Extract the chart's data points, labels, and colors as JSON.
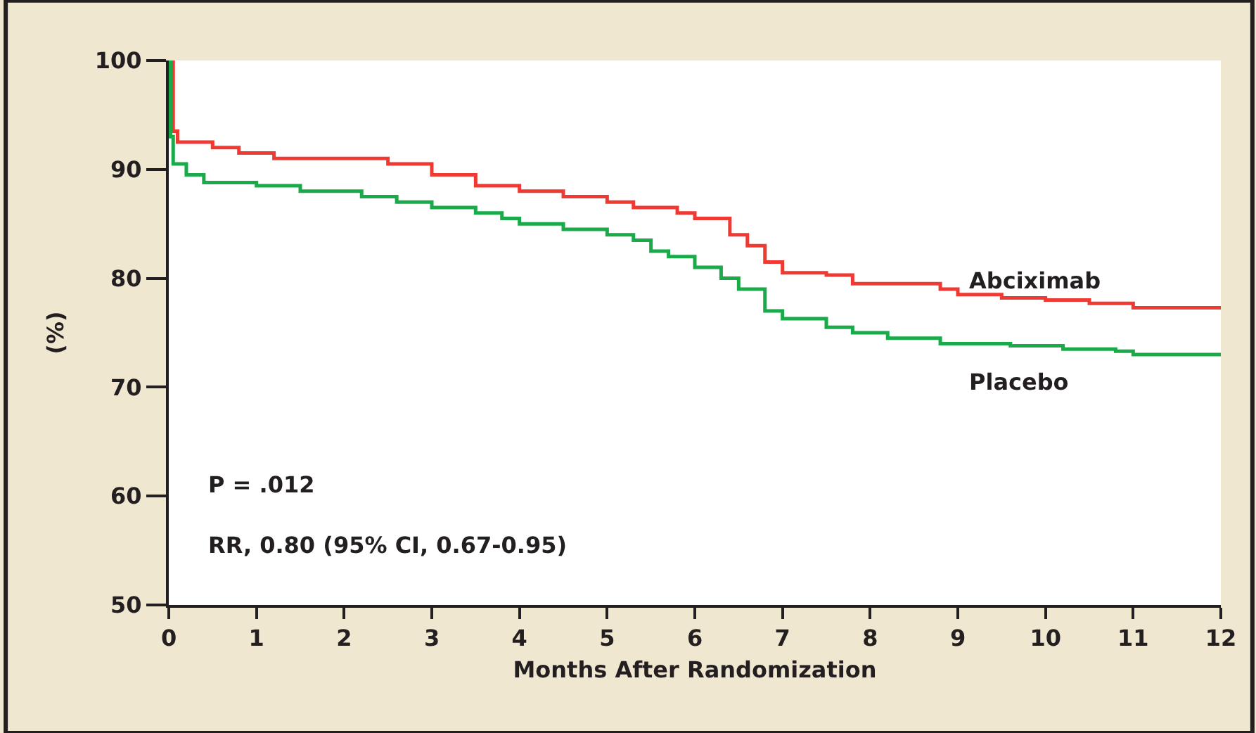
{
  "chart_data": {
    "type": "step",
    "xlabel": "Months After Randomization",
    "ylabel": "(%)",
    "xlim": [
      0,
      12
    ],
    "xticks": [
      0,
      1,
      2,
      3,
      4,
      5,
      6,
      7,
      8,
      9,
      10,
      11,
      12
    ],
    "ylim": [
      50,
      100
    ],
    "yticks": [
      50,
      60,
      70,
      80,
      90,
      100
    ],
    "grid": false,
    "legend": false,
    "marker": "none",
    "line_style": "solid",
    "annotations": [
      "P = .012",
      "RR, 0.80 (95% CI, 0.67-0.95)"
    ],
    "series": [
      {
        "name": "Abciximab",
        "color": "#ee3a33",
        "x": [
          0,
          0.05,
          0.1,
          0.5,
          0.8,
          1.2,
          2.5,
          3,
          3.5,
          4,
          4.5,
          5,
          5.3,
          5.8,
          6,
          6.4,
          6.6,
          6.8,
          7,
          7.5,
          7.8,
          8.5,
          8.8,
          9,
          9.5,
          10,
          10.5,
          11,
          12
        ],
        "values": [
          100,
          93.5,
          92.5,
          92,
          91.5,
          91,
          90.5,
          89.5,
          88.5,
          88,
          87.5,
          87,
          86.5,
          86,
          85.5,
          84,
          83,
          81.5,
          80.5,
          80.3,
          79.5,
          79.5,
          79,
          78.5,
          78.2,
          78,
          77.7,
          77.3,
          77.3
        ]
      },
      {
        "name": "Placebo",
        "color": "#1aaa4a",
        "x": [
          0,
          0.02,
          0.05,
          0.2,
          0.4,
          1,
          1.5,
          2.2,
          2.6,
          3,
          3.5,
          3.8,
          4,
          4.5,
          5,
          5.3,
          5.5,
          5.7,
          6,
          6.3,
          6.5,
          6.8,
          7,
          7.5,
          7.8,
          8.2,
          8.8,
          9.6,
          10.2,
          10.8,
          11,
          12
        ],
        "values": [
          100,
          93,
          90.5,
          89.5,
          88.8,
          88.5,
          88,
          87.5,
          87,
          86.5,
          86,
          85.5,
          85,
          84.5,
          84,
          83.5,
          82.5,
          82,
          81,
          80,
          79,
          77,
          76.3,
          75.5,
          75,
          74.5,
          74,
          73.8,
          73.5,
          73.3,
          73,
          73
        ]
      }
    ]
  }
}
